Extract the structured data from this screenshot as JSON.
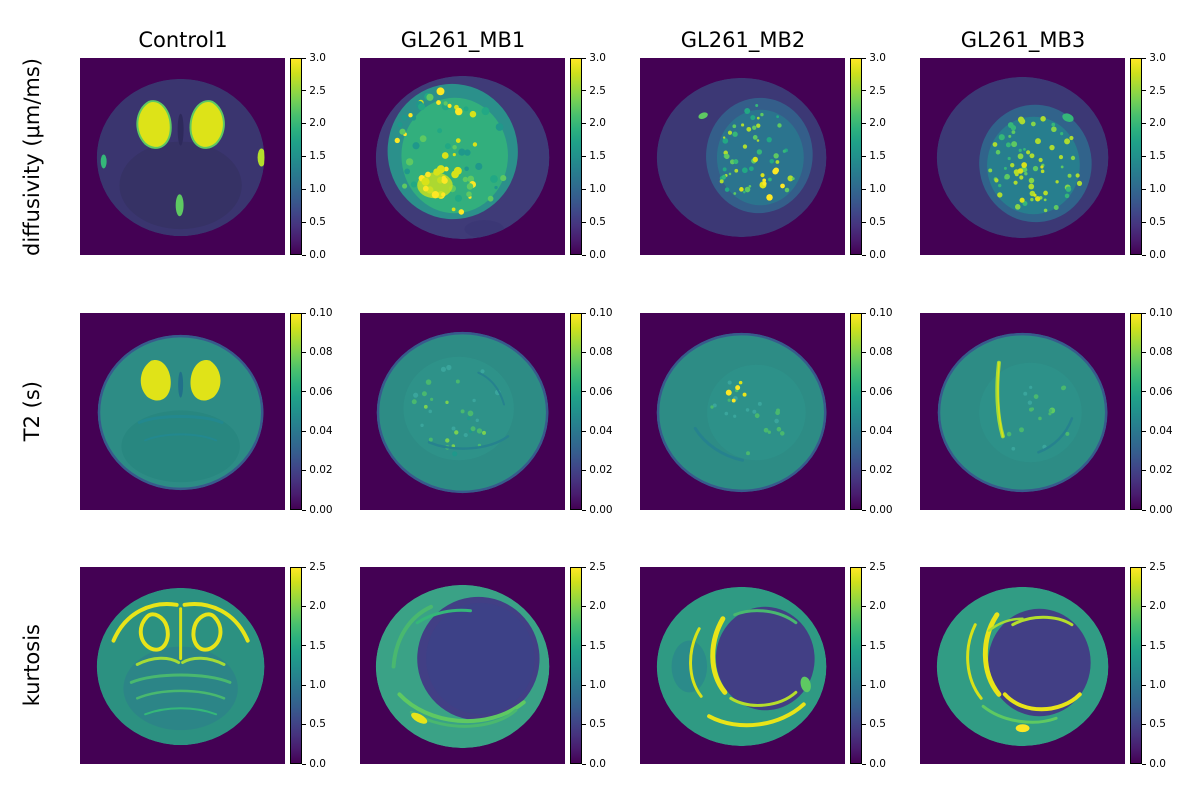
{
  "figure": {
    "columns": [
      "Control1",
      "GL261_MB1",
      "GL261_MB2",
      "GL261_MB3"
    ],
    "rows": [
      {
        "label": "diffusivity (μm/ms)",
        "colorbar": {
          "min": 0.0,
          "max": 3.0,
          "ticks": [
            "0.0",
            "0.5",
            "1.0",
            "1.5",
            "2.0",
            "2.5",
            "3.0"
          ]
        }
      },
      {
        "label": "T2 (s)",
        "colorbar": {
          "min": 0.0,
          "max": 0.1,
          "ticks": [
            "0.00",
            "0.02",
            "0.04",
            "0.06",
            "0.08",
            "0.10"
          ]
        }
      },
      {
        "label": "kurtosis",
        "colorbar": {
          "min": 0.0,
          "max": 2.5,
          "ticks": [
            "0.0",
            "0.5",
            "1.0",
            "1.5",
            "2.0",
            "2.5"
          ]
        }
      }
    ],
    "colormap": "viridis"
  },
  "chart_data": [
    {
      "type": "heatmap",
      "title": "diffusivity (μm/ms)",
      "columns": [
        "Control1",
        "GL261_MB1",
        "GL261_MB2",
        "GL261_MB3"
      ],
      "colormap": "viridis",
      "colorbar_range": [
        0.0,
        3.0
      ],
      "colorbar_ticks": [
        0.0,
        0.5,
        1.0,
        1.5,
        2.0,
        2.5,
        3.0
      ]
    },
    {
      "type": "heatmap",
      "title": "T2 (s)",
      "columns": [
        "Control1",
        "GL261_MB1",
        "GL261_MB2",
        "GL261_MB3"
      ],
      "colormap": "viridis",
      "colorbar_range": [
        0.0,
        0.1
      ],
      "colorbar_ticks": [
        0.0,
        0.02,
        0.04,
        0.06,
        0.08,
        0.1
      ]
    },
    {
      "type": "heatmap",
      "title": "kurtosis",
      "columns": [
        "Control1",
        "GL261_MB1",
        "GL261_MB2",
        "GL261_MB3"
      ],
      "colormap": "viridis",
      "colorbar_range": [
        0.0,
        2.5
      ],
      "colorbar_ticks": [
        0.0,
        0.5,
        1.0,
        1.5,
        2.0,
        2.5
      ]
    }
  ]
}
